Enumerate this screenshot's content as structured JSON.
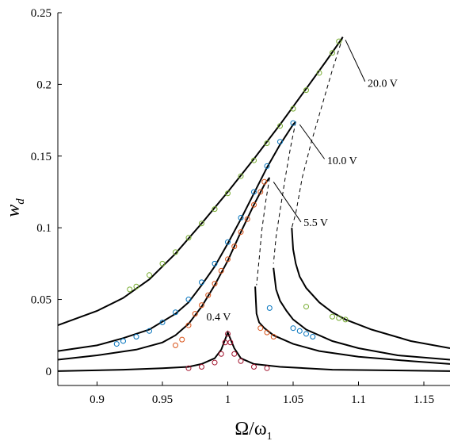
{
  "chart_data": {
    "type": "scatter",
    "title": "",
    "xlabel": "Ω/ω",
    "xlabel_sub": "1",
    "ylabel": "w",
    "ylabel_sub": "d",
    "xlim": [
      0.87,
      1.17
    ],
    "ylim": [
      -0.01,
      0.25
    ],
    "x_ticks": [
      0.9,
      0.95,
      1.0,
      1.05,
      1.1,
      1.15
    ],
    "x_tick_labels": [
      "0.9",
      "0.95",
      "1",
      "1.05",
      "1.1",
      "1.15"
    ],
    "y_ticks": [
      0,
      0.05,
      0.1,
      0.15,
      0.2,
      0.25
    ],
    "y_tick_labels": [
      "0",
      "0.05",
      "0.1",
      "0.15",
      "0.2",
      "0.25"
    ],
    "grid": false,
    "legend": "none",
    "series": [
      {
        "name": "0.4 V",
        "color": "#A2142F",
        "peak": [
          1.0,
          0.027
        ],
        "upper_branch": [
          [
            0.87,
            0.0
          ],
          [
            0.92,
            0.001
          ],
          [
            0.95,
            0.002
          ],
          [
            0.97,
            0.003
          ],
          [
            0.98,
            0.005
          ],
          [
            0.99,
            0.009
          ],
          [
            0.995,
            0.015
          ],
          [
            1.0,
            0.027
          ],
          [
            1.005,
            0.016
          ],
          [
            1.01,
            0.009
          ],
          [
            1.02,
            0.005
          ],
          [
            1.04,
            0.003
          ],
          [
            1.08,
            0.001
          ],
          [
            1.17,
            0.0
          ]
        ],
        "unstable_branch": [],
        "lower_branch": [],
        "measured": [
          [
            0.97,
            0.002
          ],
          [
            0.98,
            0.003
          ],
          [
            0.99,
            0.006
          ],
          [
            0.995,
            0.012
          ],
          [
            0.998,
            0.02
          ],
          [
            1.0,
            0.026
          ],
          [
            1.002,
            0.02
          ],
          [
            1.005,
            0.012
          ],
          [
            1.01,
            0.007
          ],
          [
            1.02,
            0.003
          ],
          [
            1.03,
            0.002
          ]
        ]
      },
      {
        "name": "5.5 V",
        "color": "#D95319",
        "peak": [
          1.032,
          0.135
        ],
        "upper_branch": [
          [
            0.87,
            0.008
          ],
          [
            0.9,
            0.011
          ],
          [
            0.93,
            0.015
          ],
          [
            0.95,
            0.02
          ],
          [
            0.96,
            0.025
          ],
          [
            0.97,
            0.033
          ],
          [
            0.98,
            0.045
          ],
          [
            0.99,
            0.06
          ],
          [
            1.0,
            0.077
          ],
          [
            1.01,
            0.097
          ],
          [
            1.02,
            0.116
          ],
          [
            1.028,
            0.13
          ],
          [
            1.032,
            0.135
          ]
        ],
        "unstable_branch": [
          [
            1.032,
            0.135
          ],
          [
            1.029,
            0.118
          ],
          [
            1.026,
            0.098
          ],
          [
            1.024,
            0.078
          ],
          [
            1.022,
            0.06
          ]
        ],
        "lower_branch": [
          [
            1.021,
            0.059
          ],
          [
            1.022,
            0.04
          ],
          [
            1.024,
            0.034
          ],
          [
            1.028,
            0.03
          ],
          [
            1.035,
            0.025
          ],
          [
            1.05,
            0.019
          ],
          [
            1.07,
            0.014
          ],
          [
            1.1,
            0.01
          ],
          [
            1.14,
            0.007
          ],
          [
            1.17,
            0.005
          ]
        ],
        "measured": [
          [
            0.96,
            0.018
          ],
          [
            0.965,
            0.022
          ],
          [
            0.97,
            0.032
          ],
          [
            0.975,
            0.04
          ],
          [
            0.98,
            0.046
          ],
          [
            0.985,
            0.053
          ],
          [
            0.99,
            0.061
          ],
          [
            0.995,
            0.07
          ],
          [
            1.0,
            0.078
          ],
          [
            1.005,
            0.087
          ],
          [
            1.01,
            0.097
          ],
          [
            1.015,
            0.106
          ],
          [
            1.02,
            0.116
          ],
          [
            1.025,
            0.125
          ],
          [
            1.028,
            0.132
          ],
          [
            1.025,
            0.03
          ],
          [
            1.03,
            0.027
          ],
          [
            1.035,
            0.024
          ]
        ]
      },
      {
        "name": "10.0 V",
        "color": "#0072BD",
        "peak": [
          1.052,
          0.174
        ],
        "upper_branch": [
          [
            0.87,
            0.014
          ],
          [
            0.9,
            0.018
          ],
          [
            0.92,
            0.023
          ],
          [
            0.94,
            0.029
          ],
          [
            0.96,
            0.04
          ],
          [
            0.97,
            0.048
          ],
          [
            0.98,
            0.06
          ],
          [
            0.99,
            0.073
          ],
          [
            1.0,
            0.089
          ],
          [
            1.01,
            0.106
          ],
          [
            1.02,
            0.124
          ],
          [
            1.03,
            0.142
          ],
          [
            1.04,
            0.158
          ],
          [
            1.05,
            0.172
          ],
          [
            1.052,
            0.174
          ]
        ],
        "unstable_branch": [
          [
            1.052,
            0.174
          ],
          [
            1.048,
            0.156
          ],
          [
            1.044,
            0.135
          ],
          [
            1.04,
            0.112
          ],
          [
            1.037,
            0.094
          ],
          [
            1.035,
            0.075
          ]
        ],
        "lower_branch": [
          [
            1.035,
            0.072
          ],
          [
            1.037,
            0.057
          ],
          [
            1.04,
            0.049
          ],
          [
            1.045,
            0.042
          ],
          [
            1.05,
            0.036
          ],
          [
            1.06,
            0.029
          ],
          [
            1.08,
            0.021
          ],
          [
            1.1,
            0.016
          ],
          [
            1.13,
            0.011
          ],
          [
            1.17,
            0.008
          ]
        ],
        "measured": [
          [
            0.915,
            0.019
          ],
          [
            0.92,
            0.021
          ],
          [
            0.93,
            0.024
          ],
          [
            0.94,
            0.028
          ],
          [
            0.95,
            0.034
          ],
          [
            0.96,
            0.041
          ],
          [
            0.97,
            0.05
          ],
          [
            0.98,
            0.062
          ],
          [
            0.99,
            0.075
          ],
          [
            1.0,
            0.09
          ],
          [
            1.01,
            0.107
          ],
          [
            1.02,
            0.125
          ],
          [
            1.03,
            0.143
          ],
          [
            1.04,
            0.16
          ],
          [
            1.05,
            0.173
          ],
          [
            1.032,
            0.044
          ],
          [
            1.05,
            0.03
          ],
          [
            1.055,
            0.028
          ],
          [
            1.06,
            0.026
          ],
          [
            1.065,
            0.024
          ]
        ]
      },
      {
        "name": "20.0 V",
        "color": "#77AC30",
        "peak": [
          1.088,
          0.233
        ],
        "upper_branch": [
          [
            0.87,
            0.032
          ],
          [
            0.9,
            0.042
          ],
          [
            0.92,
            0.051
          ],
          [
            0.94,
            0.064
          ],
          [
            0.96,
            0.082
          ],
          [
            0.98,
            0.103
          ],
          [
            1.0,
            0.125
          ],
          [
            1.02,
            0.148
          ],
          [
            1.04,
            0.172
          ],
          [
            1.06,
            0.197
          ],
          [
            1.075,
            0.216
          ],
          [
            1.085,
            0.229
          ],
          [
            1.088,
            0.233
          ]
        ],
        "unstable_branch": [
          [
            1.088,
            0.233
          ],
          [
            1.08,
            0.21
          ],
          [
            1.072,
            0.185
          ],
          [
            1.064,
            0.16
          ],
          [
            1.057,
            0.135
          ],
          [
            1.052,
            0.11
          ],
          [
            1.049,
            0.1
          ]
        ],
        "lower_branch": [
          [
            1.049,
            0.1
          ],
          [
            1.05,
            0.085
          ],
          [
            1.052,
            0.075
          ],
          [
            1.055,
            0.066
          ],
          [
            1.06,
            0.058
          ],
          [
            1.07,
            0.048
          ],
          [
            1.08,
            0.041
          ],
          [
            1.09,
            0.036
          ],
          [
            1.11,
            0.029
          ],
          [
            1.14,
            0.021
          ],
          [
            1.17,
            0.016
          ]
        ],
        "measured": [
          [
            0.925,
            0.057
          ],
          [
            0.93,
            0.059
          ],
          [
            0.94,
            0.067
          ],
          [
            0.95,
            0.075
          ],
          [
            0.96,
            0.083
          ],
          [
            0.97,
            0.093
          ],
          [
            0.98,
            0.103
          ],
          [
            0.99,
            0.113
          ],
          [
            1.0,
            0.124
          ],
          [
            1.01,
            0.136
          ],
          [
            1.02,
            0.147
          ],
          [
            1.03,
            0.159
          ],
          [
            1.04,
            0.171
          ],
          [
            1.05,
            0.183
          ],
          [
            1.06,
            0.196
          ],
          [
            1.07,
            0.208
          ],
          [
            1.08,
            0.222
          ],
          [
            1.085,
            0.23
          ],
          [
            1.06,
            0.045
          ],
          [
            1.08,
            0.038
          ],
          [
            1.085,
            0.037
          ],
          [
            1.09,
            0.036
          ]
        ]
      }
    ],
    "annotations": [
      {
        "text": "0.4 V",
        "x": 0.993,
        "y": 0.038,
        "anchor": "middle"
      },
      {
        "text": "5.5 V",
        "x": 1.058,
        "y": 0.104,
        "anchor": "start",
        "leader": [
          [
            1.035,
            0.132
          ],
          [
            1.056,
            0.104
          ]
        ]
      },
      {
        "text": "10.0 V",
        "x": 1.076,
        "y": 0.147,
        "anchor": "start",
        "leader": [
          [
            1.055,
            0.172
          ],
          [
            1.074,
            0.148
          ]
        ]
      },
      {
        "text": "20.0 V",
        "x": 1.107,
        "y": 0.201,
        "anchor": "start",
        "leader": [
          [
            1.09,
            0.231
          ],
          [
            1.105,
            0.202
          ]
        ]
      }
    ]
  }
}
